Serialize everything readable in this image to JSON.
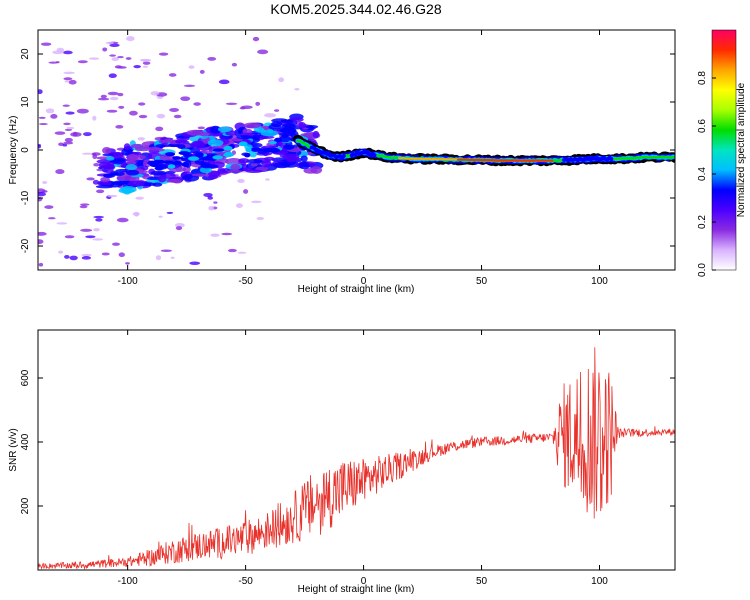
{
  "title": "KOM5.2025.344.02.46.G28",
  "chart_data": [
    {
      "type": "heatmap",
      "name": "spectrogram",
      "xlabel": "Height of straight line (km)",
      "ylabel": "Frequency (Hz)",
      "xlim": [
        -138,
        132
      ],
      "ylim": [
        -25,
        25
      ],
      "xticks": [
        -100,
        -50,
        0,
        50,
        100
      ],
      "yticks": [
        -20,
        -10,
        0,
        10,
        20
      ],
      "colorbar": {
        "label": "Normalized spectral amplitude",
        "range": [
          0,
          1
        ],
        "ticks": [
          0.0,
          0.2,
          0.4,
          0.6,
          0.8
        ],
        "colors": [
          "#ffffff",
          "#d9b3ff",
          "#8a2be2",
          "#4b00ff",
          "#0000ff",
          "#00bfff",
          "#00e5c0",
          "#00dd00",
          "#aaff00",
          "#ffff00",
          "#ffa500",
          "#ff2a00",
          "#ff0066"
        ]
      },
      "ridge": {
        "x": [
          -138,
          -120,
          -100,
          -80,
          -60,
          -45,
          -35,
          -28,
          -22,
          -15,
          -10,
          -5,
          0,
          5,
          10,
          20,
          40,
          60,
          80,
          90,
          100,
          110,
          120,
          132
        ],
        "y": [
          -2,
          -3,
          -3.5,
          -2,
          -0.5,
          0.5,
          1.5,
          2,
          0.5,
          -1,
          -1.5,
          -1,
          -0.5,
          -1,
          -1.5,
          -1.8,
          -2,
          -2.2,
          -2.2,
          -2,
          -1.8,
          -1.8,
          -1.5,
          -1.5
        ]
      }
    },
    {
      "type": "line",
      "name": "snr",
      "xlabel": "Height of straight line (km)",
      "ylabel": "SNR (v/v)",
      "xlim": [
        -138,
        132
      ],
      "ylim": [
        0,
        750
      ],
      "xticks": [
        -100,
        -50,
        0,
        50,
        100
      ],
      "yticks": [
        200,
        400,
        600
      ],
      "color": "#e8312b",
      "envelope": {
        "x": [
          -138,
          -120,
          -100,
          -90,
          -80,
          -70,
          -60,
          -50,
          -40,
          -30,
          -20,
          -10,
          0,
          10,
          20,
          30,
          40,
          50,
          60,
          70,
          80,
          84,
          90,
          95,
          98,
          102,
          105,
          110,
          120,
          132
        ],
        "y": [
          12,
          15,
          25,
          40,
          60,
          75,
          85,
          100,
          125,
          160,
          210,
          250,
          280,
          310,
          340,
          370,
          390,
          400,
          405,
          410,
          415,
          420,
          420,
          420,
          420,
          420,
          425,
          428,
          430,
          432
        ]
      },
      "noise_amplitude": {
        "x": [
          -138,
          -100,
          -80,
          -60,
          -40,
          -30,
          -20,
          -10,
          0,
          20,
          30,
          50,
          80,
          84,
          100,
          105,
          108,
          132
        ],
        "y": [
          8,
          15,
          40,
          50,
          60,
          80,
          110,
          100,
          70,
          35,
          20,
          15,
          15,
          160,
          300,
          200,
          15,
          10
        ]
      }
    }
  ]
}
